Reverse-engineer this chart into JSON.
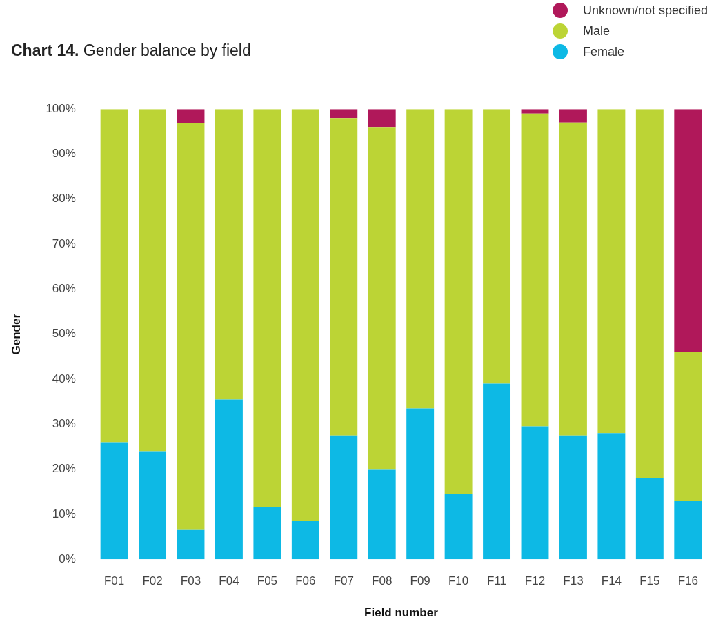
{
  "chart_data": {
    "type": "bar",
    "title": "Chart 14. Gender balance by field",
    "xlabel": "Field number",
    "ylabel": "Gender",
    "stacked": true,
    "legend": "top right",
    "grid": false,
    "categories": [
      "F01",
      "F02",
      "F03",
      "F04",
      "F05",
      "F06",
      "F07",
      "F08",
      "F09",
      "F10",
      "F11",
      "F12",
      "F13",
      "F14",
      "F15",
      "F16"
    ],
    "ylim": [
      0,
      100
    ],
    "yticks": [
      {
        "value": 0,
        "label": "0%"
      },
      {
        "value": 10,
        "label": "10%"
      },
      {
        "value": 20,
        "label": "20%"
      },
      {
        "value": 30,
        "label": "30%"
      },
      {
        "value": 40,
        "label": "40%"
      },
      {
        "value": 50,
        "label": "50%"
      },
      {
        "value": 60,
        "label": "60%"
      },
      {
        "value": 70,
        "label": "70%"
      },
      {
        "value": 80,
        "label": "80%"
      },
      {
        "value": 90,
        "label": "90%"
      },
      {
        "value": 100,
        "label": "100%"
      }
    ],
    "series": [
      {
        "name": "Female",
        "color": "#0db9e5",
        "values": [
          26,
          24,
          6.5,
          35.5,
          11.5,
          8.5,
          27.5,
          20,
          33.5,
          14.5,
          39,
          29.5,
          27.5,
          28,
          18,
          13
        ]
      },
      {
        "name": "Male",
        "color": "#bcd435",
        "values": [
          74,
          76,
          90.3,
          64.5,
          88.5,
          91.5,
          70.5,
          76,
          66.5,
          85.5,
          61,
          69.5,
          69.5,
          72,
          82,
          33
        ]
      },
      {
        "name": "Unknown/not specified",
        "color": "#b0185a",
        "values": [
          0,
          0,
          3.2,
          0,
          0,
          0,
          2,
          4,
          0,
          0,
          0,
          1,
          3,
          0,
          0,
          54
        ]
      }
    ]
  }
}
